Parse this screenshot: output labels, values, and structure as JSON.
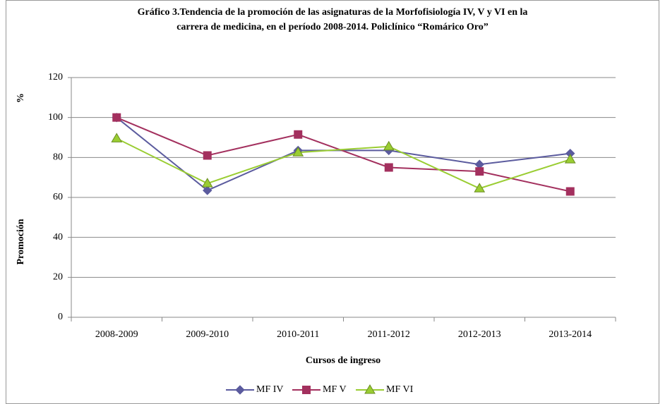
{
  "chart_data": {
    "type": "line",
    "title": "Gráfico 3.Tendencia de la promoción de las asignaturas de la Morfofisiología IV, V y VI en la carrera de medicina, en el período  2008-2014. Policlínico “Romárico Oro”",
    "title_lines": [
      "Gráfico 3.Tendencia de la promoción de las asignaturas de la Morfofisiología IV, V y VI en la",
      "carrera de medicina, en el período  2008-2014. Policlínico “Romárico Oro”"
    ],
    "y_unit": "%",
    "y_label": "Promoción",
    "x_label": "Cursos de ingreso",
    "categories": [
      "2008-2009",
      "2009-2010",
      "2010-2011",
      "2011-2012",
      "2012-2013",
      "2013-2014"
    ],
    "series": [
      {
        "name": "MF IV",
        "color": "#5b5b9e",
        "marker": "diamond",
        "values": [
          100,
          63.5,
          83.5,
          83.5,
          76.5,
          82
        ]
      },
      {
        "name": "MF V",
        "color": "#a3305e",
        "marker": "square",
        "values": [
          100,
          81,
          91.5,
          75,
          73,
          63
        ]
      },
      {
        "name": "MF VI",
        "color": "#9acd32",
        "marker": "triangle",
        "values": [
          89.5,
          67,
          82.5,
          85.5,
          64.5,
          79
        ]
      }
    ],
    "ylim": [
      0,
      120
    ],
    "yticks": [
      0,
      20,
      40,
      60,
      80,
      100,
      120
    ],
    "grid": true,
    "legend": "bottom"
  }
}
